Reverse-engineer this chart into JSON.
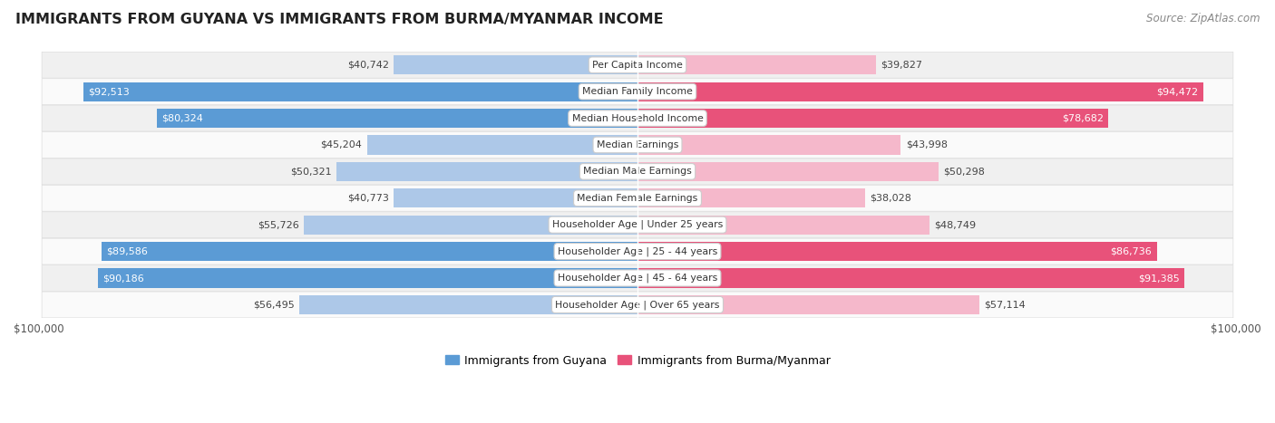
{
  "title": "IMMIGRANTS FROM GUYANA VS IMMIGRANTS FROM BURMA/MYANMAR INCOME",
  "source": "Source: ZipAtlas.com",
  "categories": [
    "Per Capita Income",
    "Median Family Income",
    "Median Household Income",
    "Median Earnings",
    "Median Male Earnings",
    "Median Female Earnings",
    "Householder Age | Under 25 years",
    "Householder Age | 25 - 44 years",
    "Householder Age | 45 - 64 years",
    "Householder Age | Over 65 years"
  ],
  "guyana_values": [
    40742,
    92513,
    80324,
    45204,
    50321,
    40773,
    55726,
    89586,
    90186,
    56495
  ],
  "burma_values": [
    39827,
    94472,
    78682,
    43998,
    50298,
    38028,
    48749,
    86736,
    91385,
    57114
  ],
  "max_val": 100000,
  "guyana_color_light": "#adc8e8",
  "guyana_color_dark": "#5b9bd5",
  "burma_color_light": "#f5b8cb",
  "burma_color_dark": "#e8527a",
  "legend_guyana": "Immigrants from Guyana",
  "legend_burma": "Immigrants from Burma/Myanmar",
  "guyana_label_threshold": 75000,
  "burma_label_threshold": 75000,
  "max_val_label": "$100,000",
  "row_bg_odd": "#f0f0f0",
  "row_bg_even": "#fafafa",
  "row_border": "#dddddd"
}
